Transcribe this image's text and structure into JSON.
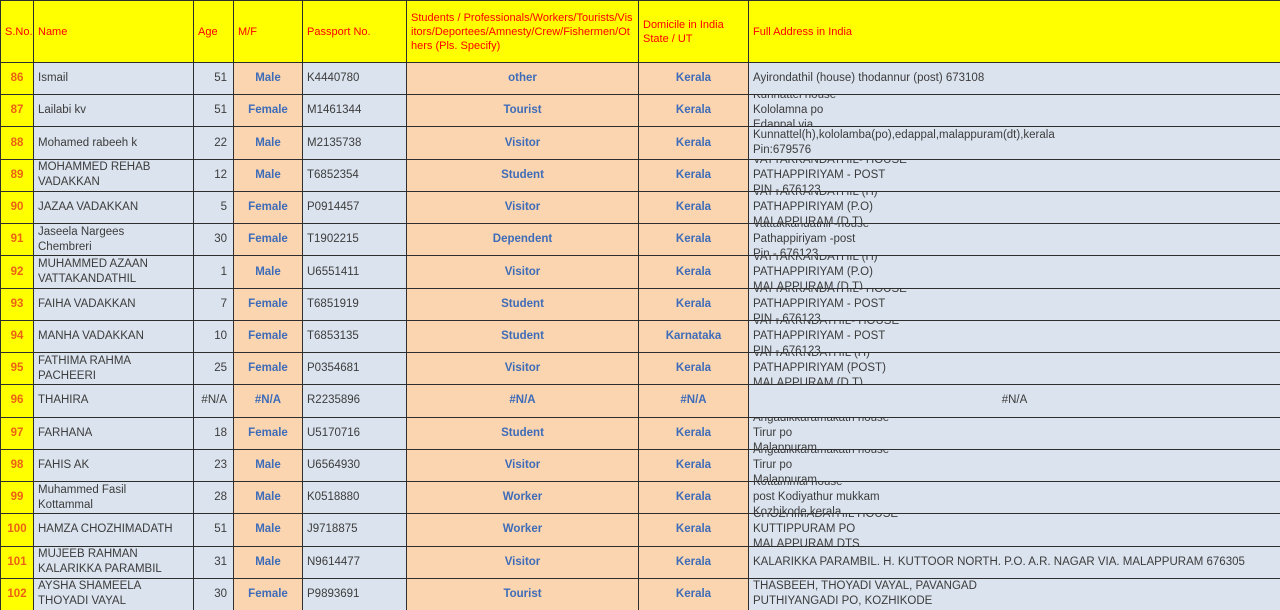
{
  "table": {
    "columns": [
      {
        "key": "sno",
        "label": "S.No."
      },
      {
        "key": "name",
        "label": "Name"
      },
      {
        "key": "age",
        "label": "Age"
      },
      {
        "key": "mf",
        "label": "M/F"
      },
      {
        "key": "passport",
        "label": "Passport No."
      },
      {
        "key": "category",
        "label": "Students / Professionals/Workers/Tourists/Visitors/Deportees/Amnesty/Crew/Fishermen/Others (Pls. Specify)"
      },
      {
        "key": "domicile",
        "label": "Domicile in India State / UT"
      },
      {
        "key": "address",
        "label": "Full Address in India"
      }
    ],
    "rows": [
      {
        "sno": "86",
        "name": "Ismail",
        "age": "51",
        "mf": "Male",
        "passport": "K4440780",
        "category": "other",
        "domicile": "Kerala",
        "address": "Ayirondathil (house) thodannur (post) 673108"
      },
      {
        "sno": "87",
        "name": "Lailabi kv",
        "age": "51",
        "mf": "Female",
        "passport": "M1461344",
        "category": "Tourist",
        "domicile": "Kerala",
        "address": "Kunnattel house\nKololamna po\nEdappal via"
      },
      {
        "sno": "88",
        "name": "Mohamed rabeeh k",
        "age": "22",
        "mf": "Male",
        "passport": "M2135738",
        "category": "Visitor",
        "domicile": "Kerala",
        "address": "Kunnattel(h),kololamba(po),edappal,malappuram(dt),kerala\nPin:679576"
      },
      {
        "sno": "89",
        "name": "MOHAMMED REHAB\nVADAKKAN",
        "age": "12",
        "mf": "Male",
        "passport": "T6852354",
        "category": "Student",
        "domicile": "Kerala",
        "address": "VATTAKKANDATHIL- HOUSE\nPATHAPPIRIYAM - POST\nPIN - 676123"
      },
      {
        "sno": "90",
        "name": "JAZAA VADAKKAN",
        "age": "5",
        "mf": "Female",
        "passport": "P0914457",
        "category": "Visitor",
        "domicile": "Kerala",
        "address": "VATTAKKANDATHIL (H)\nPATHAPPIRIYAM (P.O)\nMALAPPURAM (D.T)"
      },
      {
        "sno": "91",
        "name": "Jaseela Nargees\nChembreri",
        "age": "30",
        "mf": "Female",
        "passport": "T1902215",
        "category": "Dependent",
        "domicile": "Kerala",
        "address": "Vattakkandathil -house\nPathappiriyam -post\nPin - 676123"
      },
      {
        "sno": "92",
        "name": "MUHAMMED AZAAN\nVATTAKANDATHIL",
        "age": "1",
        "mf": "Male",
        "passport": "U6551411",
        "category": "Visitor",
        "domicile": "Kerala",
        "address": "VATTAKKANDATHIL (H)\nPATHAPPIRIYAM (P.O)\nMALAPPURAM (D.T)"
      },
      {
        "sno": "93",
        "name": "FAIHA VADAKKAN",
        "age": "7",
        "mf": "Female",
        "passport": "T6851919",
        "category": "Student",
        "domicile": "Kerala",
        "address": "VATTAKKANDATHIL- HOUSE\nPATHAPPIRIYAM - POST\nPIN - 676123"
      },
      {
        "sno": "94",
        "name": "MANHA VADAKKAN",
        "age": "10",
        "mf": "Female",
        "passport": "T6853135",
        "category": "Student",
        "domicile": "Karnataka",
        "address": "VATTAKKNDATHIL- HOUSE\nPATHAPPIRIYAM - POST\nPIN - 676123"
      },
      {
        "sno": "95",
        "name": "FATHIMA RAHMA\nPACHEERI",
        "age": "25",
        "mf": "Female",
        "passport": "P0354681",
        "category": "Visitor",
        "domicile": "Kerala",
        "address": "VATTAKKNDATHIL (H)\nPATHAPPIRIYAM (POST)\nMALAPPURAM (D.T)"
      },
      {
        "sno": "96",
        "name": "THAHIRA",
        "age": "#N/A",
        "mf": "#N/A",
        "passport": "R2235896",
        "category": "#N/A",
        "domicile": "#N/A",
        "address": "#N/A"
      },
      {
        "sno": "97",
        "name": "FARHANA",
        "age": "18",
        "mf": "Female",
        "passport": "U5170716",
        "category": "Student",
        "domicile": "Kerala",
        "address": "Angadikkaramakath house\nTirur po\nMalappuram"
      },
      {
        "sno": "98",
        "name": "FAHIS AK",
        "age": "23",
        "mf": "Male",
        "passport": "U6564930",
        "category": "Visitor",
        "domicile": "Kerala",
        "address": "Angadikkaramakath house\nTirur po\nMalappuram"
      },
      {
        "sno": "99",
        "name": "Muhammed Fasil\nKottammal",
        "age": "28",
        "mf": "Male",
        "passport": "K0518880",
        "category": "Worker",
        "domicile": "Kerala",
        "address": "Kottammal house\npost Kodiyathur mukkam\nKozhikode kerala"
      },
      {
        "sno": "100",
        "name": "HAMZA CHOZHIMADATH",
        "age": "51",
        "mf": "Male",
        "passport": "J9718875",
        "category": "Worker",
        "domicile": "Kerala",
        "address": "CHOZHIMADATHIL HOUSE\nKUTTIPPURAM PO\nMALAPPURAM DTS"
      },
      {
        "sno": "101",
        "name": "MUJEEB RAHMAN\nKALARIKKA PARAMBIL",
        "age": "31",
        "mf": "Male",
        "passport": "N9614477",
        "category": "Visitor",
        "domicile": "Kerala",
        "address": "KALARIKKA PARAMBIL. H. KUTTOOR NORTH. P.O. A.R. NAGAR VIA. MALAPPURAM 676305"
      },
      {
        "sno": "102",
        "name": "AYSHA SHAMEELA\nTHOYADI VAYAL",
        "age": "30",
        "mf": "Female",
        "passport": "P9893691",
        "category": "Tourist",
        "domicile": "Kerala",
        "address": "THASBEEH, THOYADI VAYAL, PAVANGAD\nPUTHIYANGADI PO, KOZHIKODE"
      }
    ],
    "colors": {
      "header_bg": "#ffff00",
      "header_text": "#ff0000",
      "sno_text": "#ec6214",
      "light_cell_bg": "#dbe3ee",
      "peach_cell_bg": "#fbd5b0",
      "blue_text": "#3e6cb8",
      "dark_text": "#3c3c3c",
      "grid_border": "#2e2e2e"
    }
  }
}
